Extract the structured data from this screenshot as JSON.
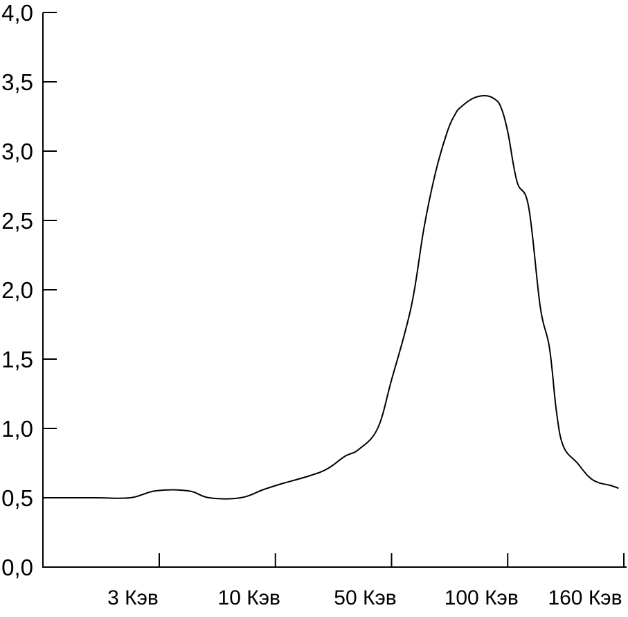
{
  "chart_data": {
    "type": "line",
    "title": "",
    "xlabel": "",
    "ylabel": "",
    "ylim": [
      0,
      4
    ],
    "y_ticks": [
      "0,0",
      "0,5",
      "1,0",
      "1,5",
      "2,0",
      "2,5",
      "3,0",
      "3,5",
      "4,0"
    ],
    "y_tick_values": [
      0,
      0.5,
      1.0,
      1.5,
      2.0,
      2.5,
      3.0,
      3.5,
      4.0
    ],
    "x_ticks": [
      "3 Кэв",
      "10 Кэв",
      "50 Кэв",
      "100 Кэв",
      "160 Кэв"
    ],
    "x_tick_positions": [
      1,
      2,
      3,
      4,
      5
    ],
    "xlim": [
      0.33,
      4.95
    ],
    "grid": false,
    "line_color": "#000000",
    "series": [
      {
        "x": [
          0.0,
          0.45,
          0.75,
          0.97,
          1.25,
          1.43,
          1.7,
          1.9,
          2.05,
          2.3,
          2.45,
          2.6,
          2.72,
          2.88,
          3.0,
          3.17,
          3.28,
          3.38,
          3.48,
          3.55,
          3.6,
          3.7,
          3.8,
          3.88,
          3.94,
          4.0,
          4.08,
          4.18,
          4.28,
          4.36,
          4.42,
          4.48,
          4.6,
          4.7,
          4.78,
          4.88,
          4.95
        ],
        "y": [
          0.5,
          0.5,
          0.5,
          0.55,
          0.55,
          0.5,
          0.5,
          0.56,
          0.6,
          0.66,
          0.71,
          0.8,
          0.85,
          1.0,
          1.35,
          1.88,
          2.45,
          2.85,
          3.14,
          3.27,
          3.32,
          3.38,
          3.4,
          3.38,
          3.32,
          3.14,
          2.78,
          2.6,
          1.88,
          1.58,
          1.12,
          0.87,
          0.75,
          0.65,
          0.61,
          0.59,
          0.57
        ]
      }
    ]
  }
}
